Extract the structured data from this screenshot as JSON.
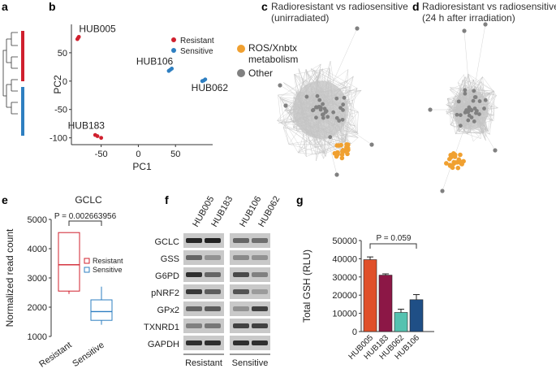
{
  "panels": {
    "a": {
      "letter": "a"
    },
    "b": {
      "letter": "b"
    },
    "c": {
      "letter": "c",
      "title_line1": "Radioresistant vs radiosensitive",
      "title_line2": "(unirradiated)"
    },
    "d": {
      "letter": "d",
      "title_line1": "Radioresistant vs radiosensitive",
      "title_line2": "(24 h after irradiation)"
    },
    "e": {
      "letter": "e"
    },
    "f": {
      "letter": "f"
    },
    "g": {
      "letter": "g"
    }
  },
  "colors": {
    "resistant": "#d0202e",
    "sensitive": "#2e7fc1",
    "ros": "#f0a030",
    "other": "#808080",
    "bar_HUB005": "#e0502a",
    "bar_HUB183": "#8c1746",
    "bar_HUB062": "#55c2b0",
    "bar_HUB106": "#1f4f86"
  },
  "network_legend": {
    "ros_line1": "ROS/Xnbtx",
    "ros_line2": "metabolism",
    "other": "Other"
  },
  "chart_data": [
    {
      "panel": "b",
      "type": "scatter",
      "title": "",
      "xlabel": "PC1",
      "ylabel": "PC2",
      "xlim": [
        -90,
        100
      ],
      "ylim": [
        -112,
        100
      ],
      "xticks": [
        -50,
        0,
        50
      ],
      "yticks": [
        -100,
        -50,
        0,
        50
      ],
      "legend": [
        "Resistant",
        "Sensitive"
      ],
      "series": [
        {
          "name": "Resistant",
          "points": [
            [
              -82,
              74
            ],
            [
              -81,
              76
            ],
            [
              -80,
              78
            ],
            [
              -58,
              -95
            ],
            [
              -55,
              -97
            ],
            [
              -50,
              -100
            ]
          ]
        },
        {
          "name": "Sensitive",
          "points": [
            [
              41,
              18
            ],
            [
              43,
              20
            ],
            [
              45,
              22
            ],
            [
              86,
              0
            ],
            [
              88,
              1
            ],
            [
              90,
              3
            ]
          ]
        }
      ],
      "point_labels": [
        {
          "text": "HUB005",
          "x": -55,
          "y": 92
        },
        {
          "text": "HUB106",
          "x": 22,
          "y": 35
        },
        {
          "text": "HUB062",
          "x": 96,
          "y": -12
        },
        {
          "text": "HUB183",
          "x": -70,
          "y": -78
        }
      ]
    },
    {
      "panel": "e",
      "type": "box",
      "title": "GCLC",
      "ylabel": "Normalized read count",
      "categories": [
        "Resistant",
        "Sensitive"
      ],
      "ylim": [
        1000,
        5000
      ],
      "yticks": [
        1000,
        2000,
        3000,
        4000,
        5000
      ],
      "legend": [
        "Resistant",
        "Sensitive"
      ],
      "boxes": [
        {
          "name": "Resistant",
          "min": 2450,
          "q1": 2550,
          "median": 3450,
          "q3": 4550,
          "max": 4550
        },
        {
          "name": "Sensitive",
          "min": 1400,
          "q1": 1550,
          "median": 1850,
          "q3": 2250,
          "max": 2700
        }
      ],
      "annotation": "P = 0.002663956"
    },
    {
      "panel": "g",
      "type": "bar",
      "title": "",
      "ylabel": "Total GSH (RLU)",
      "categories": [
        "HUB005",
        "HUB183",
        "HUB062",
        "HUB106"
      ],
      "values": [
        39500,
        31000,
        10500,
        17500
      ],
      "errors": [
        1500,
        700,
        1800,
        2800
      ],
      "ylim": [
        0,
        50000
      ],
      "yticks": [
        0,
        10000,
        20000,
        30000,
        40000,
        50000
      ],
      "annotation": "P = 0.059"
    }
  ],
  "western": {
    "lanes": [
      "HUB005",
      "HUB183",
      "HUB106",
      "HUB062"
    ],
    "proteins": [
      "GCLC",
      "GSS",
      "G6PD",
      "pNRF2",
      "GPx2",
      "TXNRD1",
      "GAPDH"
    ],
    "group_resistant": "Resistant",
    "group_sensitive": "Sensitive",
    "intensities": [
      [
        0.9,
        0.92,
        0.55,
        0.5
      ],
      [
        0.55,
        0.3,
        0.35,
        0.3
      ],
      [
        0.85,
        0.55,
        0.7,
        0.4
      ],
      [
        0.8,
        0.6,
        0.65,
        0.25
      ],
      [
        0.55,
        0.6,
        0.3,
        0.75
      ],
      [
        0.4,
        0.45,
        0.75,
        0.75
      ],
      [
        0.85,
        0.85,
        0.85,
        0.85
      ]
    ]
  }
}
